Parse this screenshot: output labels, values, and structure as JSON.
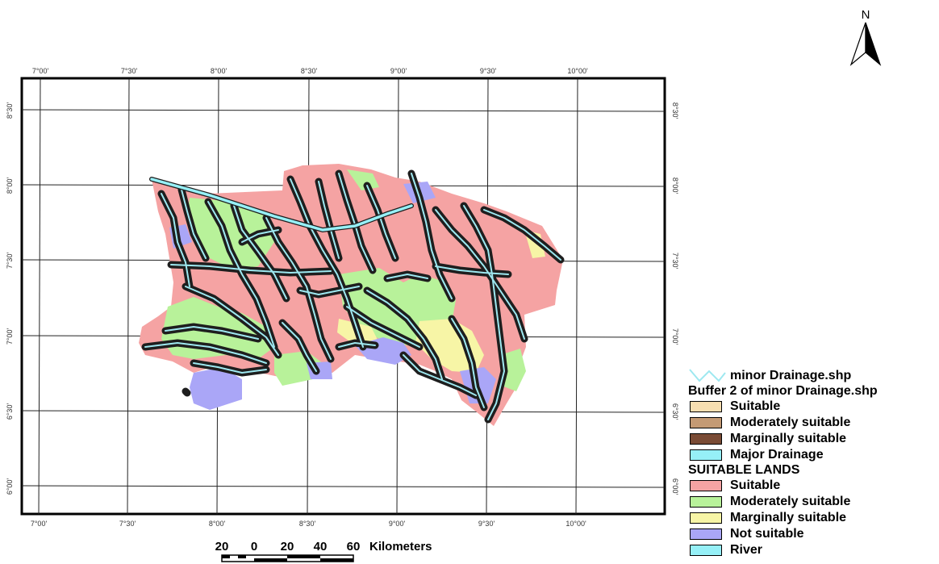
{
  "north_arrow": {
    "label": "N"
  },
  "grid": {
    "top_labels": [
      "7°00'",
      "7°30'",
      "8°00'",
      "8°30'",
      "9°00'",
      "9°30'",
      "10°00'"
    ],
    "bottom_labels": [
      "7°00'",
      "7°30'",
      "8°00'",
      "8°30'",
      "9°00'",
      "9°30'",
      "10°00'"
    ],
    "left_labels": [
      "8°30'",
      "8°00'",
      "7°30'",
      "7°00'",
      "6°30'",
      "6°00'"
    ],
    "right_labels": [
      "8°30'",
      "8°00'",
      "7°30'",
      "7°00'",
      "6°30'",
      "6°00'"
    ]
  },
  "scale_bar": {
    "numbers": [
      "20",
      "0",
      "20",
      "40",
      "60"
    ],
    "unit": "Kilometers"
  },
  "legend": {
    "line_item": {
      "label": "minor Drainage.shp",
      "color": "#9ee8f0"
    },
    "group1": {
      "title": "Buffer 2 of minor Drainage.shp",
      "items": [
        {
          "label": "Suitable",
          "color": "#f7deb1"
        },
        {
          "label": "Moderately suitable",
          "color": "#c49a74"
        },
        {
          "label": "Marginally suitable",
          "color": "#7a4b35"
        },
        {
          "label": "Major Drainage",
          "color": "#96f0f7"
        }
      ]
    },
    "group2": {
      "title": "SUITABLE LANDS",
      "items": [
        {
          "label": "Suitable",
          "color": "#f5a3a3"
        },
        {
          "label": "Moderately suitable",
          "color": "#b8f29a"
        },
        {
          "label": "Marginally suitable",
          "color": "#f7f5a6"
        },
        {
          "label": "Not suitable",
          "color": "#aaa6f7"
        },
        {
          "label": "River",
          "color": "#96f0f7"
        }
      ]
    }
  },
  "colors": {
    "suitable": "#f5a3a3",
    "moderate": "#b8f29a",
    "marginal": "#f7f5a6",
    "not_suitable": "#aaa6f7",
    "river": "#96f0f7",
    "drainage_buffer": "#1e1e1e"
  }
}
